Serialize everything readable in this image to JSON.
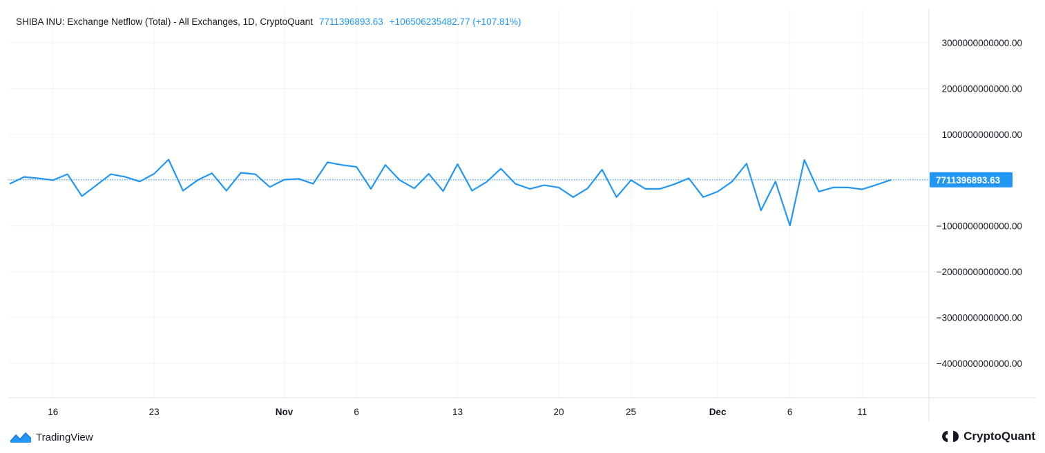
{
  "legend": {
    "title": "SHIBA INU: Exchange Netflow (Total) - All Exchanges, 1D, CryptoQuant",
    "last_value": "7711396893.63",
    "change": "+106506235482.77 (+107.81%)"
  },
  "last_value_label": "7711396893.63",
  "colors": {
    "line": "#2196f3",
    "grid": "#f0f3fa",
    "text": "#131722"
  },
  "brand_left": {
    "name": "TradingView",
    "icon": "tradingview-logo-icon"
  },
  "brand_right": {
    "name": "CryptoQuant",
    "icon": "cryptoquant-logo-icon"
  },
  "chart_data": {
    "type": "line",
    "title": "SHIBA INU: Exchange Netflow (Total) - All Exchanges, 1D, CryptoQuant",
    "xlabel": "",
    "ylabel": "",
    "ylim": [
      -4750000000000,
      3750000000000
    ],
    "grid": true,
    "y_ticks": [
      {
        "value": 3000000000000,
        "label": "3000000000000.00"
      },
      {
        "value": 2000000000000,
        "label": "2000000000000.00"
      },
      {
        "value": 1000000000000,
        "label": "1000000000000.00"
      },
      {
        "value": -1000000000000,
        "label": "−1000000000000.00"
      },
      {
        "value": -2000000000000,
        "label": "−2000000000000.00"
      },
      {
        "value": -3000000000000,
        "label": "−3000000000000.00"
      },
      {
        "value": -4000000000000,
        "label": "−4000000000000.00"
      }
    ],
    "x_ticks": [
      {
        "date": "2023-10-16",
        "label": "16",
        "bold": false
      },
      {
        "date": "2023-10-23",
        "label": "23",
        "bold": false
      },
      {
        "date": "2023-11-01",
        "label": "Nov",
        "bold": true
      },
      {
        "date": "2023-11-06",
        "label": "6",
        "bold": false
      },
      {
        "date": "2023-11-13",
        "label": "13",
        "bold": false
      },
      {
        "date": "2023-11-20",
        "label": "20",
        "bold": false
      },
      {
        "date": "2023-11-25",
        "label": "25",
        "bold": false
      },
      {
        "date": "2023-12-01",
        "label": "Dec",
        "bold": true
      },
      {
        "date": "2023-12-06",
        "label": "6",
        "bold": false
      },
      {
        "date": "2023-12-11",
        "label": "11",
        "bold": false
      }
    ],
    "series": [
      {
        "color": "#2196f3",
        "points": [
          [
            "2023-10-13",
            -80000000000
          ],
          [
            "2023-10-14",
            70000000000
          ],
          [
            "2023-10-15",
            40000000000
          ],
          [
            "2023-10-16",
            0
          ],
          [
            "2023-10-17",
            130000000000
          ],
          [
            "2023-10-18",
            -350000000000
          ],
          [
            "2023-10-19",
            -110000000000
          ],
          [
            "2023-10-20",
            130000000000
          ],
          [
            "2023-10-21",
            70000000000
          ],
          [
            "2023-10-22",
            -30000000000
          ],
          [
            "2023-10-23",
            140000000000
          ],
          [
            "2023-10-24",
            450000000000
          ],
          [
            "2023-10-25",
            -230000000000
          ],
          [
            "2023-10-26",
            0
          ],
          [
            "2023-10-27",
            150000000000
          ],
          [
            "2023-10-28",
            -230000000000
          ],
          [
            "2023-10-29",
            160000000000
          ],
          [
            "2023-10-30",
            130000000000
          ],
          [
            "2023-10-31",
            -150000000000
          ],
          [
            "2023-11-01",
            10000000000
          ],
          [
            "2023-11-02",
            30000000000
          ],
          [
            "2023-11-03",
            -80000000000
          ],
          [
            "2023-11-04",
            390000000000
          ],
          [
            "2023-11-05",
            330000000000
          ],
          [
            "2023-11-06",
            290000000000
          ],
          [
            "2023-11-07",
            -190000000000
          ],
          [
            "2023-11-08",
            330000000000
          ],
          [
            "2023-11-09",
            0
          ],
          [
            "2023-11-10",
            -180000000000
          ],
          [
            "2023-11-11",
            140000000000
          ],
          [
            "2023-11-12",
            -240000000000
          ],
          [
            "2023-11-13",
            350000000000
          ],
          [
            "2023-11-14",
            -230000000000
          ],
          [
            "2023-11-15",
            -40000000000
          ],
          [
            "2023-11-16",
            250000000000
          ],
          [
            "2023-11-17",
            -80000000000
          ],
          [
            "2023-11-18",
            -190000000000
          ],
          [
            "2023-11-19",
            -110000000000
          ],
          [
            "2023-11-20",
            -160000000000
          ],
          [
            "2023-11-21",
            -370000000000
          ],
          [
            "2023-11-22",
            -180000000000
          ],
          [
            "2023-11-23",
            230000000000
          ],
          [
            "2023-11-24",
            -370000000000
          ],
          [
            "2023-11-25",
            0
          ],
          [
            "2023-11-26",
            -190000000000
          ],
          [
            "2023-11-27",
            -190000000000
          ],
          [
            "2023-11-28",
            -90000000000
          ],
          [
            "2023-11-29",
            40000000000
          ],
          [
            "2023-11-30",
            -370000000000
          ],
          [
            "2023-12-01",
            -250000000000
          ],
          [
            "2023-12-02",
            -30000000000
          ],
          [
            "2023-12-03",
            360000000000
          ],
          [
            "2023-12-04",
            -660000000000
          ],
          [
            "2023-12-05",
            -30000000000
          ],
          [
            "2023-12-06",
            -990000000000
          ],
          [
            "2023-12-07",
            440000000000
          ],
          [
            "2023-12-08",
            -250000000000
          ],
          [
            "2023-12-09",
            -160000000000
          ],
          [
            "2023-12-10",
            -160000000000
          ],
          [
            "2023-12-11",
            -200000000000
          ],
          [
            "2023-12-12",
            -100000000000
          ],
          [
            "2023-12-13",
            7711396893.63
          ]
        ]
      }
    ],
    "last_value": 7711396893.63
  }
}
